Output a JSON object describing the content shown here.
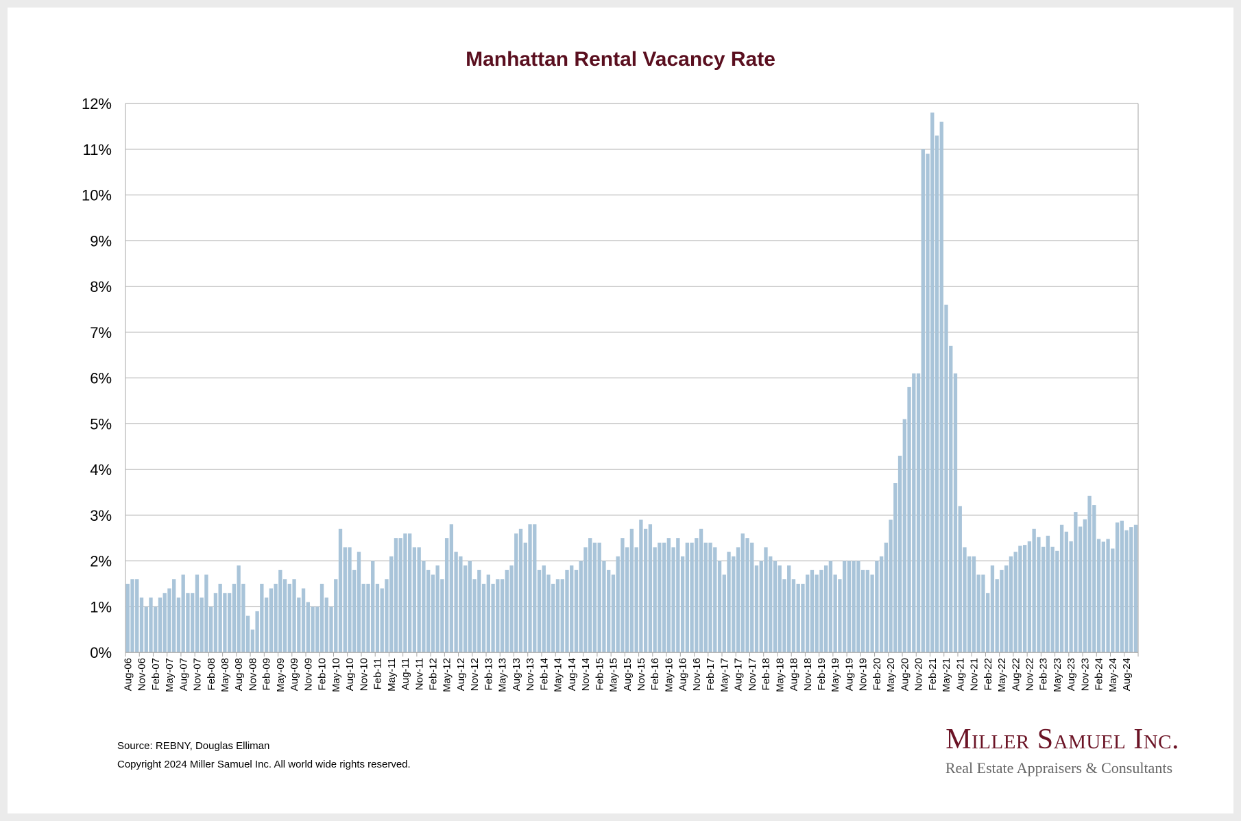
{
  "chart_data": {
    "type": "bar",
    "title": "Manhattan Rental Vacancy Rate",
    "xlabel": "",
    "ylabel": "",
    "ylim": [
      0,
      12
    ],
    "y_ticks": [
      "0%",
      "1%",
      "2%",
      "3%",
      "4%",
      "5%",
      "6%",
      "7%",
      "8%",
      "9%",
      "10%",
      "11%",
      "12%"
    ],
    "grid": true,
    "bar_color": "#a9c4d9",
    "start_month": "Aug-06",
    "tick_every": 3,
    "x_tick_labels": [
      "Aug-06",
      "Nov-06",
      "Feb-07",
      "May-07",
      "Aug-07",
      "Nov-07",
      "Feb-08",
      "May-08",
      "Aug-08",
      "Nov-08",
      "Feb-09",
      "May-09",
      "Aug-09",
      "Nov-09",
      "Feb-10",
      "May-10",
      "Aug-10",
      "Nov-10",
      "Feb-11",
      "May-11",
      "Aug-11",
      "Nov-11",
      "Feb-12",
      "May-12",
      "Aug-12",
      "Nov-12",
      "Feb-13",
      "May-13",
      "Aug-13",
      "Nov-13",
      "Feb-14",
      "May-14",
      "Aug-14",
      "Nov-14",
      "Feb-15",
      "May-15",
      "Aug-15",
      "Nov-15",
      "Feb-16",
      "May-16",
      "Aug-16",
      "Nov-16",
      "Feb-17",
      "May-17",
      "Aug-17",
      "Nov-17",
      "Feb-18",
      "May-18",
      "Aug-18",
      "Nov-18",
      "Feb-19",
      "May-19",
      "Aug-19",
      "Nov-19",
      "Feb-20",
      "May-20",
      "Aug-20",
      "Nov-20",
      "Feb-21",
      "May-21",
      "Aug-21",
      "Nov-21",
      "Feb-22",
      "May-22",
      "Aug-22",
      "Nov-22",
      "Feb-23",
      "May-23",
      "Aug-23",
      "Nov-23",
      "Feb-24",
      "May-24",
      "Aug-24"
    ],
    "values": [
      1.5,
      1.6,
      1.6,
      1.2,
      1.0,
      1.2,
      1.0,
      1.2,
      1.3,
      1.4,
      1.6,
      1.2,
      1.7,
      1.3,
      1.3,
      1.7,
      1.2,
      1.7,
      1.0,
      1.3,
      1.5,
      1.3,
      1.3,
      1.5,
      1.9,
      1.5,
      0.8,
      0.5,
      0.9,
      1.5,
      1.2,
      1.4,
      1.5,
      1.8,
      1.6,
      1.5,
      1.6,
      1.2,
      1.4,
      1.1,
      1.0,
      1.0,
      1.5,
      1.2,
      1.0,
      1.6,
      2.7,
      2.3,
      2.3,
      1.8,
      2.2,
      1.5,
      1.5,
      2.0,
      1.5,
      1.4,
      1.6,
      2.1,
      2.5,
      2.5,
      2.6,
      2.6,
      2.3,
      2.3,
      2.0,
      1.8,
      1.7,
      1.9,
      1.6,
      2.5,
      2.8,
      2.2,
      2.1,
      1.9,
      2.0,
      1.6,
      1.8,
      1.5,
      1.7,
      1.5,
      1.6,
      1.6,
      1.8,
      1.9,
      2.6,
      2.7,
      2.4,
      2.8,
      2.8,
      1.8,
      1.9,
      1.7,
      1.5,
      1.6,
      1.6,
      1.8,
      1.9,
      1.8,
      2.0,
      2.3,
      2.5,
      2.4,
      2.4,
      2.0,
      1.8,
      1.7,
      2.1,
      2.5,
      2.3,
      2.7,
      2.3,
      2.9,
      2.7,
      2.8,
      2.3,
      2.4,
      2.4,
      2.5,
      2.3,
      2.5,
      2.1,
      2.4,
      2.4,
      2.5,
      2.7,
      2.4,
      2.4,
      2.3,
      2.0,
      1.7,
      2.2,
      2.1,
      2.3,
      2.6,
      2.5,
      2.4,
      1.9,
      2.0,
      2.3,
      2.1,
      2.0,
      1.9,
      1.6,
      1.9,
      1.6,
      1.5,
      1.5,
      1.7,
      1.8,
      1.7,
      1.8,
      1.9,
      2.0,
      1.7,
      1.6,
      2.0,
      2.0,
      2.0,
      2.0,
      1.8,
      1.8,
      1.7,
      2.0,
      2.1,
      2.4,
      2.9,
      3.7,
      4.3,
      5.1,
      5.8,
      6.1,
      6.1,
      11.0,
      10.9,
      11.8,
      11.3,
      11.6,
      7.6,
      6.7,
      6.1,
      3.2,
      2.3,
      2.1,
      2.1,
      1.7,
      1.7,
      1.3,
      1.9,
      1.6,
      1.8,
      1.9,
      2.1,
      2.2,
      2.33,
      2.35,
      2.43,
      2.7,
      2.52,
      2.31,
      2.55,
      2.31,
      2.22,
      2.79,
      2.64,
      2.43,
      3.07,
      2.75,
      2.91,
      3.42,
      3.22,
      2.48,
      2.42,
      2.48,
      2.27,
      2.84,
      2.88,
      2.67,
      2.74,
      2.79
    ]
  },
  "footer": {
    "source": "Source: REBNY, Douglas Elliman",
    "copyright": "Copyright 2024 Miller Samuel Inc.  All world wide rights reserved.",
    "logo_name": "Miller Samuel Inc.",
    "logo_tagline": "Real Estate Appraisers & Consultants"
  }
}
